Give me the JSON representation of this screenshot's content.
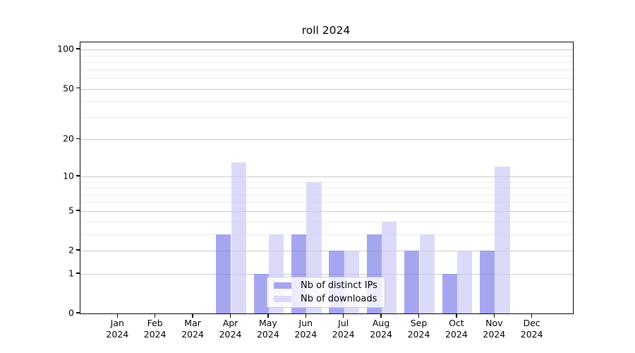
{
  "chart_data": {
    "type": "bar",
    "title": "roll 2024",
    "categories": [
      "Jan",
      "Feb",
      "Mar",
      "Apr",
      "May",
      "Jun",
      "Jul",
      "Aug",
      "Sep",
      "Oct",
      "Nov",
      "Dec"
    ],
    "year_label": "2024",
    "series": [
      {
        "name": "Nb of distinct IPs",
        "color": "rgba(128,128,234,0.7)",
        "values": [
          0,
          0,
          0,
          3,
          1,
          3,
          2,
          3,
          2,
          1,
          2,
          0
        ]
      },
      {
        "name": "Nb of downloads",
        "color": "rgba(204,204,247,0.7)",
        "values": [
          0,
          0,
          0,
          13,
          3,
          9,
          2,
          4,
          3,
          2,
          12,
          0
        ]
      }
    ],
    "y_scale": "log1p",
    "y_axis_max": 113.6,
    "y_major_ticks": [
      100,
      50,
      20,
      10,
      5,
      2,
      1,
      0
    ],
    "y_minor_ticks": [
      3,
      4,
      6,
      7,
      8,
      9,
      30,
      40,
      60,
      70,
      80,
      90
    ],
    "xlabel": "",
    "ylabel": "",
    "grid": "horizontal",
    "legend_position": "lower-center"
  },
  "colors": {
    "background": "#ffffff",
    "spine": "#000000",
    "grid_major": "#c9c9c9",
    "grid_minor": "#ececec",
    "legend_border": "#cccccc"
  }
}
